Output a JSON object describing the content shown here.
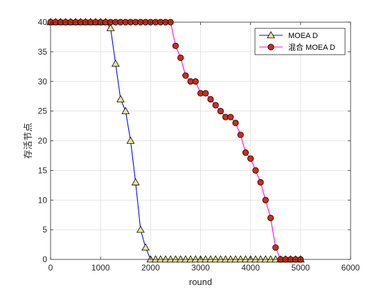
{
  "chart_data": {
    "type": "line",
    "title": "",
    "xlabel": "round",
    "ylabel": "存活节点",
    "xlim": [
      0,
      6000
    ],
    "ylim": [
      0,
      40
    ],
    "xticks": [
      0,
      1000,
      2000,
      3000,
      4000,
      5000,
      6000
    ],
    "yticks": [
      0,
      5,
      10,
      15,
      20,
      25,
      30,
      35,
      40
    ],
    "grid": true,
    "legend_position": "top-right",
    "series": [
      {
        "name": "MOEA D",
        "color": "#0000ff",
        "marker": "triangle",
        "marker_fill": "#e6e68c",
        "x": [
          0,
          100,
          200,
          300,
          400,
          500,
          600,
          700,
          800,
          900,
          1000,
          1100,
          1200,
          1300,
          1400,
          1500,
          1600,
          1700,
          1800,
          1900,
          2000,
          2100,
          2200,
          2300,
          2400,
          2500,
          2600,
          2700,
          2800,
          2900,
          3000,
          3100,
          3200,
          3300,
          3400,
          3500,
          3600,
          3700,
          3800,
          3900,
          4000,
          4100,
          4200,
          4300,
          4400,
          4500,
          4600,
          4700,
          4800,
          4900,
          5000
        ],
        "y": [
          40,
          40,
          40,
          40,
          40,
          40,
          40,
          40,
          40,
          40,
          40,
          40,
          39,
          33,
          27,
          25,
          20,
          13,
          5,
          2,
          0,
          0,
          0,
          0,
          0,
          0,
          0,
          0,
          0,
          0,
          0,
          0,
          0,
          0,
          0,
          0,
          0,
          0,
          0,
          0,
          0,
          0,
          0,
          0,
          0,
          0,
          0,
          0,
          0,
          0,
          0
        ]
      },
      {
        "name": "混合 MOEA D",
        "color": "#ff00ff",
        "marker": "circle",
        "marker_fill": "#d62a0e",
        "x": [
          0,
          100,
          200,
          300,
          400,
          500,
          600,
          700,
          800,
          900,
          1000,
          1100,
          1200,
          1300,
          1400,
          1500,
          1600,
          1700,
          1800,
          1900,
          2000,
          2100,
          2200,
          2300,
          2400,
          2500,
          2600,
          2700,
          2800,
          2900,
          3000,
          3100,
          3200,
          3300,
          3400,
          3500,
          3600,
          3700,
          3800,
          3900,
          4000,
          4100,
          4200,
          4300,
          4400,
          4500,
          4600,
          4700,
          4800,
          4900,
          5000
        ],
        "y": [
          40,
          40,
          40,
          40,
          40,
          40,
          40,
          40,
          40,
          40,
          40,
          40,
          40,
          40,
          40,
          40,
          40,
          40,
          40,
          40,
          40,
          40,
          40,
          40,
          40,
          36,
          34,
          31,
          30,
          30,
          28,
          28,
          27,
          26,
          25,
          24,
          24,
          23,
          21,
          18,
          17,
          15,
          13,
          10,
          7,
          2,
          0,
          0,
          0,
          0,
          0
        ]
      }
    ]
  }
}
